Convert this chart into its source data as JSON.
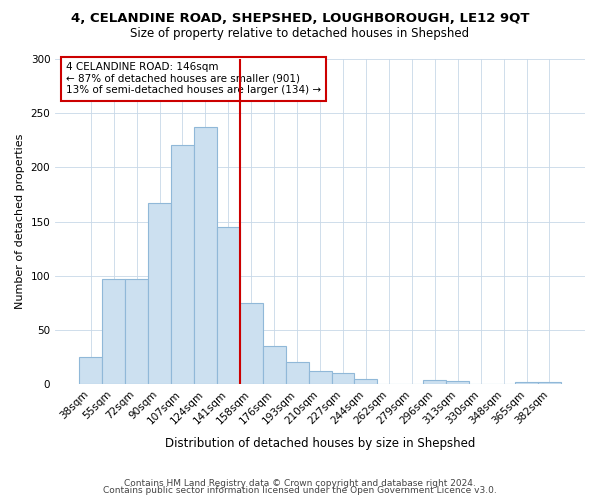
{
  "title1": "4, CELANDINE ROAD, SHEPSHED, LOUGHBOROUGH, LE12 9QT",
  "title2": "Size of property relative to detached houses in Shepshed",
  "xlabel": "Distribution of detached houses by size in Shepshed",
  "ylabel": "Number of detached properties",
  "categories": [
    "38sqm",
    "55sqm",
    "72sqm",
    "90sqm",
    "107sqm",
    "124sqm",
    "141sqm",
    "158sqm",
    "176sqm",
    "193sqm",
    "210sqm",
    "227sqm",
    "244sqm",
    "262sqm",
    "279sqm",
    "296sqm",
    "313sqm",
    "330sqm",
    "348sqm",
    "365sqm",
    "382sqm"
  ],
  "values": [
    25,
    97,
    97,
    167,
    221,
    237,
    145,
    75,
    35,
    20,
    12,
    10,
    5,
    0,
    0,
    4,
    3,
    0,
    0,
    2,
    2
  ],
  "bar_color": "#cce0f0",
  "bar_edge_color": "#90b8d8",
  "vline_x": 6.5,
  "vline_color": "#cc0000",
  "annotation_text": "4 CELANDINE ROAD: 146sqm\n← 87% of detached houses are smaller (901)\n13% of semi-detached houses are larger (134) →",
  "annotation_box_facecolor": "#ffffff",
  "annotation_box_edgecolor": "#cc0000",
  "ylim": [
    0,
    300
  ],
  "yticks": [
    0,
    50,
    100,
    150,
    200,
    250,
    300
  ],
  "footer1": "Contains HM Land Registry data © Crown copyright and database right 2024.",
  "footer2": "Contains public sector information licensed under the Open Government Licence v3.0.",
  "bg_color": "#ffffff",
  "plot_bg_color": "#ffffff",
  "title1_fontsize": 9.5,
  "title2_fontsize": 8.5,
  "axis_tick_fontsize": 7.5,
  "ylabel_fontsize": 8,
  "xlabel_fontsize": 8.5,
  "annotation_fontsize": 7.5,
  "footer_fontsize": 6.5
}
